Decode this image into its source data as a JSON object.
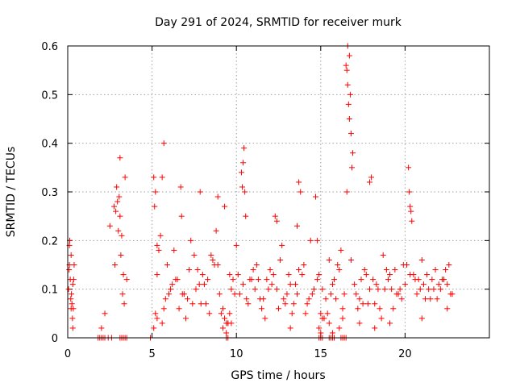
{
  "chart_data": {
    "type": "scatter",
    "title": "Day 291 of 2024, SRMTID for receiver murk",
    "xlabel": "GPS time / hours",
    "ylabel": "SRMTID / TECUs",
    "xlim": [
      0,
      25
    ],
    "ylim": [
      0,
      0.6
    ],
    "x_ticks": [
      0,
      5,
      10,
      15,
      20
    ],
    "x_tick_labels": [
      "0",
      "5",
      "10",
      "15",
      "20"
    ],
    "y_ticks": [
      0,
      0.1,
      0.2,
      0.3,
      0.4,
      0.5,
      0.6
    ],
    "y_tick_labels": [
      "0",
      "0.1",
      "0.2",
      "0.3",
      "0.4",
      "0.5",
      "0.6"
    ],
    "grid": true,
    "marker": "+",
    "color": "#ff0000",
    "series": [
      {
        "name": "SRMTID",
        "x": [
          0.05,
          0.08,
          0.1,
          0.12,
          0.15,
          0.18,
          0.2,
          0.22,
          0.25,
          0.28,
          0.3,
          0.33,
          0.35,
          0.38,
          0.1,
          0.2,
          0.3,
          2.0,
          2.2,
          2.5,
          2.75,
          2.85,
          2.9,
          2.95,
          3.0,
          3.05,
          3.1,
          3.15,
          3.2,
          3.25,
          3.3,
          3.35,
          3.4,
          2.8,
          3.1,
          3.5,
          5.1,
          5.15,
          5.2,
          5.3,
          5.6,
          5.7,
          6.7,
          6.75,
          7.85,
          8.9,
          9.3,
          10.3,
          10.35,
          10.4,
          10.45,
          10.5,
          10.55,
          12.3,
          12.4,
          13.6,
          13.7,
          13.8,
          14.7,
          14.8,
          16.5,
          16.55,
          16.6,
          16.65,
          16.7,
          16.75,
          16.8,
          16.6,
          16.7,
          16.85,
          16.55,
          16.9,
          17.9,
          18.0,
          20.2,
          20.25,
          20.3,
          20.35,
          20.4,
          5.5,
          5.9,
          6.3,
          6.9,
          7.3,
          7.7,
          8.1,
          8.5,
          8.8,
          9.2,
          9.6,
          10.0,
          10.8,
          11.2,
          11.6,
          12.0,
          12.7,
          13.1,
          13.4,
          14.0,
          14.4,
          15.1,
          15.5,
          15.9,
          16.2,
          17.2,
          17.6,
          18.3,
          18.7,
          19.1,
          19.5,
          19.9,
          20.6,
          21.0,
          21.4,
          21.8,
          22.2,
          22.6,
          5.2,
          5.8,
          6.4,
          7.0,
          7.6,
          8.2,
          8.9,
          9.5,
          10.2,
          10.9,
          11.5,
          12.1,
          12.8,
          13.3,
          13.9,
          14.5,
          15.2,
          15.7,
          16.3,
          17.1,
          17.7,
          18.2,
          18.8,
          19.4,
          20.0,
          20.7,
          21.3,
          21.9,
          22.5,
          5.4,
          6.0,
          6.6,
          7.2,
          7.8,
          8.4,
          9.0,
          9.7,
          10.1,
          10.7,
          11.3,
          11.9,
          12.5,
          13.0,
          13.5,
          14.2,
          14.9,
          15.4,
          16.0,
          17.3,
          17.9,
          18.5,
          19.0,
          19.6,
          20.5,
          21.1,
          21.7,
          22.3,
          22.8,
          5.6,
          6.2,
          6.8,
          7.4,
          8.0,
          8.6,
          9.1,
          9.8,
          10.6,
          11.1,
          11.7,
          12.2,
          12.9,
          13.6,
          14.1,
          14.6,
          15.3,
          15.8,
          16.4,
          17.0,
          17.5,
          18.1,
          18.6,
          19.2,
          19.8,
          20.3,
          20.9,
          21.5,
          22.0,
          22.7,
          5.3,
          5.7,
          6.1,
          6.5,
          7.1,
          7.5,
          7.9,
          8.3,
          8.7,
          9.4,
          9.9,
          10.4,
          11.0,
          11.4,
          11.8,
          12.4,
          12.6,
          13.2,
          13.7,
          14.3,
          14.8,
          15.0,
          15.6,
          16.1,
          16.8,
          17.4,
          17.8,
          18.4,
          18.9,
          19.3,
          19.7,
          20.1,
          20.8,
          21.2,
          21.6,
          22.1,
          22.4,
          9.2,
          9.3,
          9.4,
          9.5,
          9.6,
          14.9,
          15.0,
          15.1,
          15.5,
          15.7,
          16.1,
          16.3,
          5.1,
          5.3,
          9.7,
          13.2,
          17.3,
          18.2,
          19.1,
          21.0,
          22.5,
          1.8,
          1.9,
          2.0,
          2.1,
          2.2,
          2.4,
          2.6,
          3.1,
          3.2,
          3.3,
          3.4,
          3.5,
          4.9,
          9.4,
          9.5,
          14.9,
          15.0,
          15.1,
          15.5,
          15.6,
          15.7,
          15.8,
          16.2,
          16.3,
          16.4,
          16.5
        ],
        "y": [
          0.1,
          0.14,
          0.15,
          0.2,
          0.12,
          0.08,
          0.06,
          0.09,
          0.07,
          0.04,
          0.02,
          0.06,
          0.12,
          0.15,
          0.19,
          0.17,
          0.11,
          0.02,
          0.05,
          0.23,
          0.27,
          0.26,
          0.31,
          0.28,
          0.22,
          0.29,
          0.25,
          0.17,
          0.21,
          0.09,
          0.13,
          0.07,
          0.33,
          0.15,
          0.37,
          0.12,
          0.33,
          0.27,
          0.3,
          0.19,
          0.33,
          0.4,
          0.31,
          0.25,
          0.3,
          0.29,
          0.27,
          0.34,
          0.31,
          0.36,
          0.39,
          0.3,
          0.25,
          0.25,
          0.24,
          0.23,
          0.32,
          0.3,
          0.29,
          0.2,
          0.56,
          0.55,
          0.52,
          0.48,
          0.45,
          0.5,
          0.42,
          0.6,
          0.58,
          0.35,
          0.3,
          0.38,
          0.32,
          0.33,
          0.35,
          0.3,
          0.27,
          0.26,
          0.24,
          0.21,
          0.15,
          0.18,
          0.09,
          0.2,
          0.14,
          0.11,
          0.17,
          0.22,
          0.06,
          0.13,
          0.19,
          0.12,
          0.15,
          0.08,
          0.14,
          0.19,
          0.13,
          0.07,
          0.15,
          0.2,
          0.1,
          0.16,
          0.08,
          0.18,
          0.06,
          0.14,
          0.11,
          0.17,
          0.13,
          0.09,
          0.15,
          0.12,
          0.16,
          0.1,
          0.14,
          0.12,
          0.15,
          0.05,
          0.08,
          0.12,
          0.04,
          0.1,
          0.07,
          0.15,
          0.03,
          0.09,
          0.12,
          0.06,
          0.11,
          0.08,
          0.05,
          0.13,
          0.09,
          0.04,
          0.11,
          0.06,
          0.09,
          0.13,
          0.07,
          0.1,
          0.14,
          0.11,
          0.09,
          0.13,
          0.08,
          0.11,
          0.18,
          0.09,
          0.06,
          0.14,
          0.11,
          0.05,
          0.09,
          0.1,
          0.13,
          0.07,
          0.12,
          0.1,
          0.06,
          0.09,
          0.11,
          0.07,
          0.13,
          0.05,
          0.15,
          0.08,
          0.1,
          0.06,
          0.12,
          0.09,
          0.13,
          0.11,
          0.1,
          0.12,
          0.09,
          0.03,
          0.11,
          0.09,
          0.07,
          0.13,
          0.16,
          0.05,
          0.12,
          0.08,
          0.1,
          0.04,
          0.13,
          0.07,
          0.09,
          0.05,
          0.1,
          0.08,
          0.12,
          0.09,
          0.11,
          0.07,
          0.12,
          0.04,
          0.1,
          0.08,
          0.13,
          0.1,
          0.08,
          0.11,
          0.09,
          0.13,
          0.06,
          0.1,
          0.12,
          0.08,
          0.17,
          0.07,
          0.12,
          0.15,
          0.03,
          0.09,
          0.11,
          0.14,
          0.08,
          0.12,
          0.1,
          0.16,
          0.11,
          0.14,
          0.08,
          0.12,
          0.05,
          0.09,
          0.14,
          0.16,
          0.12,
          0.07,
          0.1,
          0.14,
          0.06,
          0.1,
          0.15,
          0.12,
          0.08,
          0.12,
          0.1,
          0.14,
          0.02,
          0.04,
          0.01,
          0.03,
          0.05,
          0.02,
          0.01,
          0.04,
          0.03,
          0.01,
          0.02,
          0.04,
          0.02,
          0.04,
          0.03,
          0.02,
          0.03,
          0.02,
          0.03,
          0.04,
          0.06,
          0,
          0,
          0,
          0,
          0,
          0,
          0,
          0,
          0,
          0,
          0,
          0,
          0,
          0,
          0,
          0,
          0,
          0,
          0,
          0,
          0,
          0,
          0,
          0,
          0,
          0
        ]
      }
    ]
  }
}
